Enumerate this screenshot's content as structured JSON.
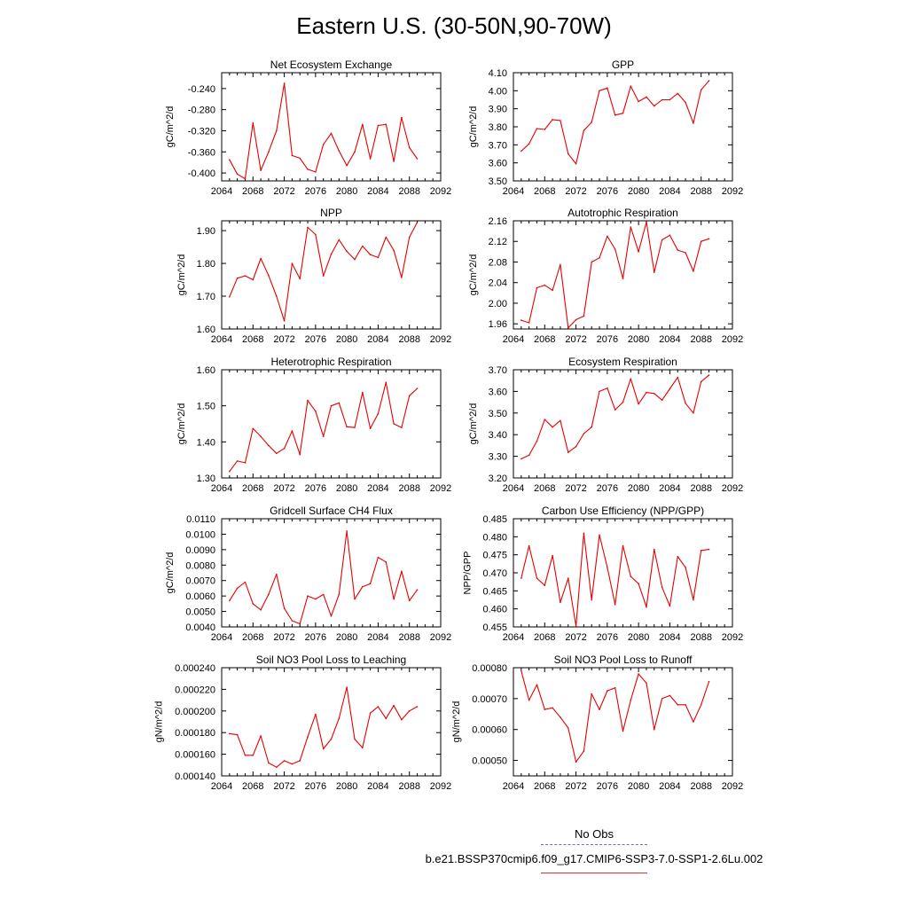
{
  "page": {
    "title": "Eastern U.S. (30-50N,90-70W)"
  },
  "legend": {
    "obs_label": "No Obs",
    "case_label": "b.e21.BSSP370cmip6.f09_g17.CMIP6-SSP3-7.0-SSP1-2.6Lu.002",
    "obs_color": "#6b6bd6",
    "case_color": "#e03030"
  },
  "colors": {
    "line": "#e60000",
    "axis": "#000000"
  },
  "chart_data": [
    {
      "type": "line",
      "title": "Net Ecosystem Exchange",
      "ylabel": "gC/m^2/d",
      "xlim": [
        2064,
        2092
      ],
      "ylim": [
        -0.415,
        -0.21
      ],
      "xticks": [
        2064,
        2068,
        2072,
        2076,
        2080,
        2084,
        2088,
        2092
      ],
      "yticks": [
        -0.24,
        -0.28,
        -0.32,
        -0.36,
        -0.4
      ],
      "yticklabels": [
        "-0.240",
        "-0.280",
        "-0.320",
        "-0.360",
        "-0.400"
      ],
      "x": [
        2065,
        2066,
        2067,
        2068,
        2069,
        2070,
        2071,
        2072,
        2073,
        2074,
        2075,
        2076,
        2077,
        2078,
        2079,
        2080,
        2081,
        2082,
        2083,
        2084,
        2085,
        2086,
        2087,
        2088,
        2089
      ],
      "y": [
        -0.375,
        -0.402,
        -0.411,
        -0.305,
        -0.395,
        -0.36,
        -0.32,
        -0.23,
        -0.367,
        -0.372,
        -0.393,
        -0.398,
        -0.346,
        -0.325,
        -0.358,
        -0.386,
        -0.36,
        -0.308,
        -0.373,
        -0.31,
        -0.308,
        -0.378,
        -0.295,
        -0.352,
        -0.373
      ]
    },
    {
      "type": "line",
      "title": "GPP",
      "ylabel": "gC/m^2/d",
      "xlim": [
        2064,
        2092
      ],
      "ylim": [
        3.5,
        4.1
      ],
      "xticks": [
        2064,
        2068,
        2072,
        2076,
        2080,
        2084,
        2088,
        2092
      ],
      "yticks": [
        4.1,
        4.0,
        3.9,
        3.8,
        3.7,
        3.6,
        3.5
      ],
      "yticklabels": [
        "4.10",
        "4.00",
        "3.90",
        "3.80",
        "3.70",
        "3.60",
        "3.50"
      ],
      "x": [
        2065,
        2066,
        2067,
        2068,
        2069,
        2070,
        2071,
        2072,
        2073,
        2074,
        2075,
        2076,
        2077,
        2078,
        2079,
        2080,
        2081,
        2082,
        2083,
        2084,
        2085,
        2086,
        2087,
        2088,
        2089
      ],
      "y": [
        3.665,
        3.705,
        3.79,
        3.785,
        3.84,
        3.835,
        3.65,
        3.595,
        3.78,
        3.825,
        4.0,
        4.015,
        3.865,
        3.875,
        4.025,
        3.94,
        3.965,
        3.915,
        3.95,
        3.95,
        3.985,
        3.935,
        3.82,
        4.005,
        4.055
      ]
    },
    {
      "type": "line",
      "title": "NPP",
      "ylabel": "gC/m^2/d",
      "xlim": [
        2064,
        2092
      ],
      "ylim": [
        1.6,
        1.93
      ],
      "xticks": [
        2064,
        2068,
        2072,
        2076,
        2080,
        2084,
        2088,
        2092
      ],
      "yticks": [
        1.9,
        1.8,
        1.7,
        1.6
      ],
      "yticklabels": [
        "1.90",
        "1.80",
        "1.70",
        "1.60"
      ],
      "x": [
        2065,
        2066,
        2067,
        2068,
        2069,
        2070,
        2071,
        2072,
        2073,
        2074,
        2075,
        2076,
        2077,
        2078,
        2079,
        2080,
        2081,
        2082,
        2083,
        2084,
        2085,
        2086,
        2087,
        2088,
        2089
      ],
      "y": [
        1.698,
        1.755,
        1.762,
        1.75,
        1.815,
        1.763,
        1.7,
        1.625,
        1.8,
        1.753,
        1.91,
        1.888,
        1.762,
        1.828,
        1.872,
        1.837,
        1.812,
        1.853,
        1.827,
        1.818,
        1.88,
        1.84,
        1.757,
        1.88,
        1.925
      ]
    },
    {
      "type": "line",
      "title": "Autotrophic Respiration",
      "ylabel": "gC/m^2/d",
      "xlim": [
        2064,
        2092
      ],
      "ylim": [
        1.95,
        2.16
      ],
      "xticks": [
        2064,
        2068,
        2072,
        2076,
        2080,
        2084,
        2088,
        2092
      ],
      "yticks": [
        2.16,
        2.12,
        2.08,
        2.04,
        2.0,
        1.96
      ],
      "yticklabels": [
        "2.16",
        "2.12",
        "2.08",
        "2.04",
        "2.00",
        "1.96"
      ],
      "x": [
        2065,
        2066,
        2067,
        2068,
        2069,
        2070,
        2071,
        2072,
        2073,
        2074,
        2075,
        2076,
        2077,
        2078,
        2079,
        2080,
        2081,
        2082,
        2083,
        2084,
        2085,
        2086,
        2087,
        2088,
        2089
      ],
      "y": [
        1.967,
        1.962,
        2.03,
        2.035,
        2.025,
        2.075,
        1.952,
        1.968,
        1.975,
        2.08,
        2.088,
        2.13,
        2.105,
        2.048,
        2.148,
        2.1,
        2.158,
        2.06,
        2.123,
        2.132,
        2.103,
        2.098,
        2.062,
        2.12,
        2.125
      ]
    },
    {
      "type": "line",
      "title": "Heterotrophic Respiration",
      "ylabel": "gC/m^2/d",
      "xlim": [
        2064,
        2092
      ],
      "ylim": [
        1.3,
        1.6
      ],
      "xticks": [
        2064,
        2068,
        2072,
        2076,
        2080,
        2084,
        2088,
        2092
      ],
      "yticks": [
        1.6,
        1.5,
        1.4,
        1.3
      ],
      "yticklabels": [
        "1.60",
        "1.50",
        "1.40",
        "1.30"
      ],
      "x": [
        2065,
        2066,
        2067,
        2068,
        2069,
        2070,
        2071,
        2072,
        2073,
        2074,
        2075,
        2076,
        2077,
        2078,
        2079,
        2080,
        2081,
        2082,
        2083,
        2084,
        2085,
        2086,
        2087,
        2088,
        2089
      ],
      "y": [
        1.318,
        1.347,
        1.342,
        1.437,
        1.415,
        1.39,
        1.368,
        1.382,
        1.43,
        1.365,
        1.515,
        1.485,
        1.415,
        1.5,
        1.508,
        1.442,
        1.44,
        1.537,
        1.437,
        1.478,
        1.565,
        1.45,
        1.44,
        1.528,
        1.548
      ]
    },
    {
      "type": "line",
      "title": "Ecosystem Respiration",
      "ylabel": "gC/m^2/d",
      "xlim": [
        2064,
        2092
      ],
      "ylim": [
        3.2,
        3.7
      ],
      "xticks": [
        2064,
        2068,
        2072,
        2076,
        2080,
        2084,
        2088,
        2092
      ],
      "yticks": [
        3.7,
        3.6,
        3.5,
        3.4,
        3.3,
        3.2
      ],
      "yticklabels": [
        "3.70",
        "3.60",
        "3.50",
        "3.40",
        "3.30",
        "3.20"
      ],
      "x": [
        2065,
        2066,
        2067,
        2068,
        2069,
        2070,
        2071,
        2072,
        2073,
        2074,
        2075,
        2076,
        2077,
        2078,
        2079,
        2080,
        2081,
        2082,
        2083,
        2084,
        2085,
        2086,
        2087,
        2088,
        2089
      ],
      "y": [
        3.288,
        3.305,
        3.37,
        3.47,
        3.435,
        3.465,
        3.318,
        3.345,
        3.405,
        3.435,
        3.6,
        3.615,
        3.515,
        3.55,
        3.658,
        3.542,
        3.595,
        3.59,
        3.56,
        3.612,
        3.665,
        3.545,
        3.5,
        3.645,
        3.675
      ]
    },
    {
      "type": "line",
      "title": "Gridcell Surface CH4 Flux",
      "ylabel": "gC/m^2/d",
      "xlim": [
        2064,
        2092
      ],
      "ylim": [
        0.004,
        0.011
      ],
      "xticks": [
        2064,
        2068,
        2072,
        2076,
        2080,
        2084,
        2088,
        2092
      ],
      "yticks": [
        0.011,
        0.01,
        0.009,
        0.008,
        0.007,
        0.006,
        0.005,
        0.004
      ],
      "yticklabels": [
        "0.0110",
        "0.0100",
        "0.0090",
        "0.0080",
        "0.0070",
        "0.0060",
        "0.0050",
        "0.0040"
      ],
      "x": [
        2065,
        2066,
        2067,
        2068,
        2069,
        2070,
        2071,
        2072,
        2073,
        2074,
        2075,
        2076,
        2077,
        2078,
        2079,
        2080,
        2081,
        2082,
        2083,
        2084,
        2085,
        2086,
        2087,
        2088,
        2089
      ],
      "y": [
        0.0057,
        0.0065,
        0.0069,
        0.0055,
        0.0051,
        0.0061,
        0.0074,
        0.0052,
        0.0044,
        0.0042,
        0.006,
        0.0058,
        0.0061,
        0.0047,
        0.0061,
        0.0102,
        0.0058,
        0.0066,
        0.0068,
        0.0085,
        0.0082,
        0.0058,
        0.0076,
        0.0057,
        0.0064
      ]
    },
    {
      "type": "line",
      "title": "Carbon Use Efficiency (NPP/GPP)",
      "ylabel": "NPP/GPP",
      "xlim": [
        2064,
        2092
      ],
      "ylim": [
        0.455,
        0.485
      ],
      "xticks": [
        2064,
        2068,
        2072,
        2076,
        2080,
        2084,
        2088,
        2092
      ],
      "yticks": [
        0.485,
        0.48,
        0.475,
        0.47,
        0.465,
        0.46,
        0.455
      ],
      "yticklabels": [
        "0.485",
        "0.480",
        "0.475",
        "0.470",
        "0.465",
        "0.460",
        "0.455"
      ],
      "x": [
        2065,
        2066,
        2067,
        2068,
        2069,
        2070,
        2071,
        2072,
        2073,
        2074,
        2075,
        2076,
        2077,
        2078,
        2079,
        2080,
        2081,
        2082,
        2083,
        2084,
        2085,
        2086,
        2087,
        2088,
        2089
      ],
      "y": [
        0.4685,
        0.4775,
        0.4685,
        0.4665,
        0.4748,
        0.4618,
        0.4685,
        0.4552,
        0.481,
        0.4625,
        0.4805,
        0.4715,
        0.4612,
        0.4775,
        0.469,
        0.467,
        0.4605,
        0.4765,
        0.466,
        0.4608,
        0.4745,
        0.4715,
        0.4625,
        0.4762,
        0.4765
      ]
    },
    {
      "type": "line",
      "title": "Soil NO3 Pool Loss to Leaching",
      "ylabel": "gN/m^2/d",
      "xlim": [
        2064,
        2092
      ],
      "ylim": [
        0.00014,
        0.00024
      ],
      "xticks": [
        2064,
        2068,
        2072,
        2076,
        2080,
        2084,
        2088,
        2092
      ],
      "yticks": [
        0.00024,
        0.00022,
        0.0002,
        0.00018,
        0.00016,
        0.00014
      ],
      "yticklabels": [
        "0.000240",
        "0.000220",
        "0.000200",
        "0.000180",
        "0.000160",
        "0.000140"
      ],
      "x": [
        2065,
        2066,
        2067,
        2068,
        2069,
        2070,
        2071,
        2072,
        2073,
        2074,
        2075,
        2076,
        2077,
        2078,
        2079,
        2080,
        2081,
        2082,
        2083,
        2084,
        2085,
        2086,
        2087,
        2088,
        2089
      ],
      "y": [
        0.000179,
        0.000178,
        0.000159,
        0.000159,
        0.000177,
        0.000152,
        0.000148,
        0.000154,
        0.000151,
        0.000154,
        0.000176,
        0.000197,
        0.000165,
        0.000174,
        0.000193,
        0.000222,
        0.000174,
        0.000166,
        0.000198,
        0.000204,
        0.000193,
        0.000205,
        0.000192,
        0.0002,
        0.000204
      ]
    },
    {
      "type": "line",
      "title": "Soil NO3 Pool Loss to Runoff",
      "ylabel": "gN/m^2/d",
      "xlim": [
        2064,
        2092
      ],
      "ylim": [
        0.00045,
        0.0008
      ],
      "xticks": [
        2064,
        2068,
        2072,
        2076,
        2080,
        2084,
        2088,
        2092
      ],
      "yticks": [
        0.0008,
        0.0007,
        0.0006,
        0.0005
      ],
      "yticklabels": [
        "0.00080",
        "0.00070",
        "0.00060",
        "0.00050"
      ],
      "x": [
        2065,
        2066,
        2067,
        2068,
        2069,
        2070,
        2071,
        2072,
        2073,
        2074,
        2075,
        2076,
        2077,
        2078,
        2079,
        2080,
        2081,
        2082,
        2083,
        2084,
        2085,
        2086,
        2087,
        2088,
        2089
      ],
      "y": [
        0.00079,
        0.000695,
        0.000745,
        0.000665,
        0.00067,
        0.00064,
        0.000605,
        0.000495,
        0.00053,
        0.000715,
        0.000665,
        0.000725,
        0.000735,
        0.000595,
        0.000695,
        0.00078,
        0.00075,
        0.0006,
        0.0007,
        0.00071,
        0.00068,
        0.00068,
        0.000625,
        0.00068,
        0.000755
      ]
    }
  ]
}
